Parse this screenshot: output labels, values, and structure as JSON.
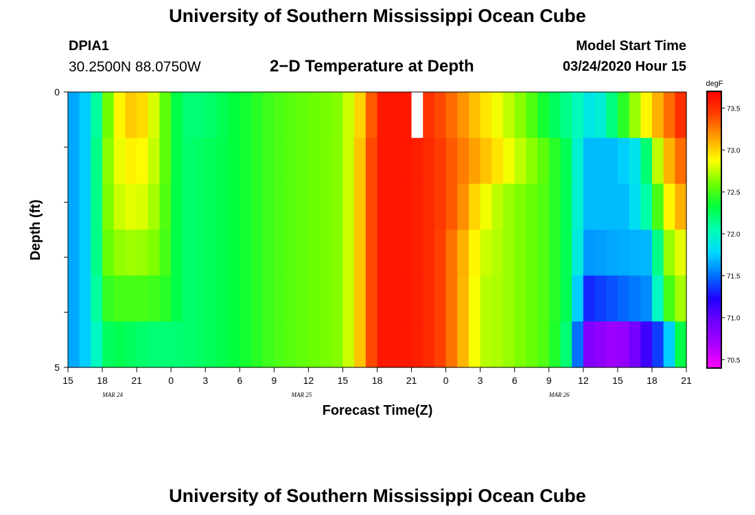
{
  "header": {
    "title": "University of Southern Mississippi Ocean Cube",
    "station_id": "DPIA1",
    "station_coords": "30.2500N 88.0750W",
    "plot_title": "2−D Temperature at Depth",
    "start_label": "Model Start Time",
    "start_value": "03/24/2020 Hour 15"
  },
  "footer": {
    "title": "University of Southern Mississippi Ocean Cube"
  },
  "chart_data": {
    "type": "heatmap",
    "xlabel": "Forecast Time(Z)",
    "ylabel": "Depth (ft)",
    "x_tick_labels": [
      "15",
      "18",
      "21",
      "0",
      "3",
      "6",
      "9",
      "12",
      "15",
      "18",
      "21",
      "0",
      "3",
      "6",
      "9",
      "12",
      "15",
      "18",
      "21"
    ],
    "x_date_labels": [
      {
        "label": "MAR  24",
        "at_tick": 1.3
      },
      {
        "label": "MAR  25",
        "at_tick": 6.8
      },
      {
        "label": "MAR  26",
        "at_tick": 14.3
      }
    ],
    "x_range_hours": [
      0,
      54
    ],
    "y_tick_labels": [
      "0",
      "5"
    ],
    "ylim": [
      0,
      5
    ],
    "colorbar": {
      "unit": "degF",
      "min": 70.4,
      "max": 73.7,
      "ticks": [
        "73.5",
        "73.0",
        "72.5",
        "72.0",
        "71.5",
        "71.0",
        "70.5"
      ],
      "colors": [
        "#ff00ff",
        "#aa00ff",
        "#7000ff",
        "#2000ff",
        "#0070ff",
        "#00d8ff",
        "#00ffb4",
        "#00ff3c",
        "#70ff00",
        "#ffff00",
        "#ffa000",
        "#ff4000",
        "#ff0000"
      ]
    },
    "depth_layers": [
      [
        {
          "h": 0,
          "t": 71.6
        },
        {
          "h": 2,
          "t": 71.8
        },
        {
          "h": 3,
          "t": 72.4
        },
        {
          "h": 4,
          "t": 72.8
        },
        {
          "h": 5,
          "t": 73.0
        },
        {
          "h": 6,
          "t": 73.05
        },
        {
          "h": 7,
          "t": 72.9
        },
        {
          "h": 8,
          "t": 72.7
        },
        {
          "h": 9,
          "t": 72.4
        },
        {
          "h": 10,
          "t": 72.2
        },
        {
          "h": 12,
          "t": 72.2
        },
        {
          "h": 14,
          "t": 72.3
        },
        {
          "h": 16,
          "t": 72.4
        },
        {
          "h": 18,
          "t": 72.5
        },
        {
          "h": 22,
          "t": 72.6
        },
        {
          "h": 24,
          "t": 72.65
        },
        {
          "h": 25,
          "t": 72.9
        },
        {
          "h": 26,
          "t": 73.1
        },
        {
          "h": 27,
          "t": 73.6
        },
        {
          "h": 28,
          "t": 73.6
        },
        {
          "h": 30,
          "t": 73.6
        },
        {
          "h": 32,
          "t": 73.45
        },
        {
          "h": 34,
          "t": 73.25
        },
        {
          "h": 36,
          "t": 73.0
        },
        {
          "h": 38,
          "t": 72.8
        },
        {
          "h": 40,
          "t": 72.6
        },
        {
          "h": 42,
          "t": 72.3
        },
        {
          "h": 44,
          "t": 72.1
        },
        {
          "h": 46,
          "t": 71.8
        },
        {
          "h": 48,
          "t": 72.3
        },
        {
          "h": 50,
          "t": 72.8
        },
        {
          "h": 52,
          "t": 73.2
        },
        {
          "h": 54,
          "t": 73.6
        }
      ],
      [
        {
          "h": 0,
          "t": 71.6
        },
        {
          "h": 2,
          "t": 71.8
        },
        {
          "h": 3,
          "t": 72.5
        },
        {
          "h": 4,
          "t": 72.8
        },
        {
          "h": 6,
          "t": 72.95
        },
        {
          "h": 8,
          "t": 72.7
        },
        {
          "h": 9,
          "t": 72.4
        },
        {
          "h": 10,
          "t": 72.2
        },
        {
          "h": 14,
          "t": 72.3
        },
        {
          "h": 18,
          "t": 72.5
        },
        {
          "h": 24,
          "t": 72.65
        },
        {
          "h": 25,
          "t": 72.9
        },
        {
          "h": 26,
          "t": 73.2
        },
        {
          "h": 27,
          "t": 73.6
        },
        {
          "h": 30,
          "t": 73.6
        },
        {
          "h": 32,
          "t": 73.5
        },
        {
          "h": 34,
          "t": 73.3
        },
        {
          "h": 36,
          "t": 73.1
        },
        {
          "h": 38,
          "t": 72.9
        },
        {
          "h": 40,
          "t": 72.7
        },
        {
          "h": 42,
          "t": 72.5
        },
        {
          "h": 44,
          "t": 72.2
        },
        {
          "h": 45,
          "t": 71.7
        },
        {
          "h": 48,
          "t": 71.7
        },
        {
          "h": 50,
          "t": 71.9
        },
        {
          "h": 51,
          "t": 72.5
        },
        {
          "h": 52,
          "t": 73.0
        },
        {
          "h": 54,
          "t": 73.4
        }
      ],
      [
        {
          "h": 0,
          "t": 71.6
        },
        {
          "h": 2,
          "t": 71.8
        },
        {
          "h": 3,
          "t": 72.5
        },
        {
          "h": 4,
          "t": 72.75
        },
        {
          "h": 6,
          "t": 72.85
        },
        {
          "h": 8,
          "t": 72.65
        },
        {
          "h": 9,
          "t": 72.4
        },
        {
          "h": 10,
          "t": 72.2
        },
        {
          "h": 14,
          "t": 72.3
        },
        {
          "h": 18,
          "t": 72.5
        },
        {
          "h": 24,
          "t": 72.65
        },
        {
          "h": 25,
          "t": 72.9
        },
        {
          "h": 26,
          "t": 73.2
        },
        {
          "h": 27,
          "t": 73.6
        },
        {
          "h": 30,
          "t": 73.6
        },
        {
          "h": 32,
          "t": 73.5
        },
        {
          "h": 34,
          "t": 73.3
        },
        {
          "h": 36,
          "t": 72.9
        },
        {
          "h": 38,
          "t": 72.7
        },
        {
          "h": 40,
          "t": 72.6
        },
        {
          "h": 42,
          "t": 72.5
        },
        {
          "h": 44,
          "t": 72.2
        },
        {
          "h": 45,
          "t": 71.7
        },
        {
          "h": 49,
          "t": 71.7
        },
        {
          "h": 51,
          "t": 72.2
        },
        {
          "h": 52,
          "t": 72.8
        },
        {
          "h": 54,
          "t": 73.2
        }
      ],
      [
        {
          "h": 0,
          "t": 71.6
        },
        {
          "h": 2,
          "t": 71.8
        },
        {
          "h": 3,
          "t": 72.5
        },
        {
          "h": 4,
          "t": 72.65
        },
        {
          "h": 6,
          "t": 72.7
        },
        {
          "h": 8,
          "t": 72.6
        },
        {
          "h": 9,
          "t": 72.4
        },
        {
          "h": 10,
          "t": 72.2
        },
        {
          "h": 14,
          "t": 72.3
        },
        {
          "h": 18,
          "t": 72.5
        },
        {
          "h": 24,
          "t": 72.65
        },
        {
          "h": 25,
          "t": 72.9
        },
        {
          "h": 26,
          "t": 73.2
        },
        {
          "h": 27,
          "t": 73.6
        },
        {
          "h": 30,
          "t": 73.6
        },
        {
          "h": 32,
          "t": 73.5
        },
        {
          "h": 34,
          "t": 73.2
        },
        {
          "h": 36,
          "t": 72.8
        },
        {
          "h": 38,
          "t": 72.7
        },
        {
          "h": 40,
          "t": 72.6
        },
        {
          "h": 42,
          "t": 72.5
        },
        {
          "h": 44,
          "t": 72.2
        },
        {
          "h": 45,
          "t": 71.6
        },
        {
          "h": 51,
          "t": 71.7
        },
        {
          "h": 52,
          "t": 72.6
        },
        {
          "h": 54,
          "t": 72.9
        }
      ],
      [
        {
          "h": 0,
          "t": 71.6
        },
        {
          "h": 2,
          "t": 71.8
        },
        {
          "h": 3,
          "t": 72.4
        },
        {
          "h": 4,
          "t": 72.5
        },
        {
          "h": 7,
          "t": 72.5
        },
        {
          "h": 9,
          "t": 72.4
        },
        {
          "h": 10,
          "t": 72.2
        },
        {
          "h": 14,
          "t": 72.3
        },
        {
          "h": 18,
          "t": 72.5
        },
        {
          "h": 24,
          "t": 72.65
        },
        {
          "h": 25,
          "t": 72.9
        },
        {
          "h": 26,
          "t": 73.2
        },
        {
          "h": 27,
          "t": 73.6
        },
        {
          "h": 30,
          "t": 73.6
        },
        {
          "h": 32,
          "t": 73.5
        },
        {
          "h": 34,
          "t": 73.2
        },
        {
          "h": 36,
          "t": 72.75
        },
        {
          "h": 38,
          "t": 72.7
        },
        {
          "h": 40,
          "t": 72.6
        },
        {
          "h": 42,
          "t": 72.5
        },
        {
          "h": 44,
          "t": 72.2
        },
        {
          "h": 45,
          "t": 71.3
        },
        {
          "h": 51,
          "t": 71.6
        },
        {
          "h": 52,
          "t": 72.4
        },
        {
          "h": 54,
          "t": 72.8
        }
      ],
      [
        {
          "h": 0,
          "t": 71.6
        },
        {
          "h": 2,
          "t": 71.8
        },
        {
          "h": 3,
          "t": 72.2
        },
        {
          "h": 4,
          "t": 72.3
        },
        {
          "h": 7,
          "t": 72.2
        },
        {
          "h": 10,
          "t": 72.2
        },
        {
          "h": 14,
          "t": 72.3
        },
        {
          "h": 18,
          "t": 72.5
        },
        {
          "h": 24,
          "t": 72.65
        },
        {
          "h": 25,
          "t": 72.9
        },
        {
          "h": 26,
          "t": 73.2
        },
        {
          "h": 27,
          "t": 73.6
        },
        {
          "h": 30,
          "t": 73.6
        },
        {
          "h": 32,
          "t": 73.5
        },
        {
          "h": 34,
          "t": 73.2
        },
        {
          "h": 36,
          "t": 72.75
        },
        {
          "h": 38,
          "t": 72.7
        },
        {
          "h": 40,
          "t": 72.6
        },
        {
          "h": 42,
          "t": 72.5
        },
        {
          "h": 44,
          "t": 72.1
        },
        {
          "h": 45,
          "t": 70.9
        },
        {
          "h": 48,
          "t": 70.7
        },
        {
          "h": 50,
          "t": 71.0
        },
        {
          "h": 52,
          "t": 71.5
        },
        {
          "h": 53,
          "t": 72.0
        },
        {
          "h": 54,
          "t": 72.6
        }
      ]
    ],
    "missing_cell": {
      "hour": 30,
      "layer": 0
    }
  }
}
